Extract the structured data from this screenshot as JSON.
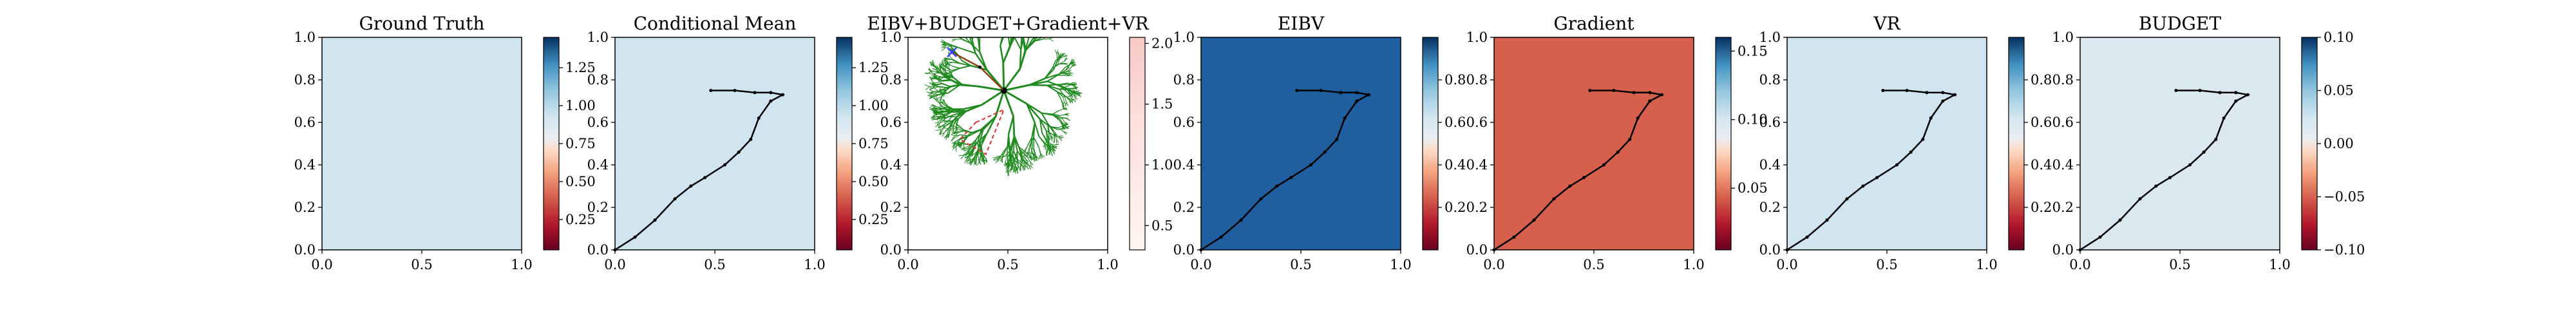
{
  "chart_data": [
    {
      "type": "heatmap",
      "title": "Ground Truth",
      "xlim": [
        0,
        1
      ],
      "ylim": [
        0,
        1
      ],
      "xticks": [
        "0.0",
        "0.5",
        "1.0"
      ],
      "yticks": [
        "0.0",
        "0.2",
        "0.4",
        "0.6",
        "0.8",
        "1.0"
      ],
      "colorbar_ticks": [
        "0.25",
        "0.50",
        "0.75",
        "1.00",
        "1.25"
      ],
      "colorbar_range": [
        0.05,
        1.45
      ],
      "colormap": "RdBu",
      "path": []
    },
    {
      "type": "heatmap",
      "title": "Conditional Mean",
      "xlim": [
        0,
        1
      ],
      "ylim": [
        0,
        1
      ],
      "xticks": [
        "0.0",
        "0.5",
        "1.0"
      ],
      "yticks": [
        "0.0",
        "0.2",
        "0.4",
        "0.6",
        "0.8",
        "1.0"
      ],
      "colorbar_ticks": [
        "0.25",
        "0.50",
        "0.75",
        "1.00",
        "1.25"
      ],
      "colorbar_range": [
        0.05,
        1.45
      ],
      "colormap": "RdBu",
      "path": [
        [
          0.0,
          0.0
        ],
        [
          0.1,
          0.06
        ],
        [
          0.2,
          0.14
        ],
        [
          0.3,
          0.24
        ],
        [
          0.38,
          0.3
        ],
        [
          0.45,
          0.34
        ],
        [
          0.55,
          0.4
        ],
        [
          0.62,
          0.46
        ],
        [
          0.68,
          0.52
        ],
        [
          0.72,
          0.62
        ],
        [
          0.78,
          0.7
        ],
        [
          0.84,
          0.73
        ],
        [
          0.78,
          0.74
        ],
        [
          0.7,
          0.74
        ],
        [
          0.6,
          0.75
        ],
        [
          0.48,
          0.75
        ]
      ]
    },
    {
      "type": "heatmap",
      "title": "EIBV+BUDGET+Gradient+VR",
      "xlim": [
        0,
        1
      ],
      "ylim": [
        0,
        1
      ],
      "xticks": [
        "0.0",
        "0.5",
        "1.0"
      ],
      "yticks": [
        "0.0",
        "0.2",
        "0.4",
        "0.6",
        "0.8",
        "1.0"
      ],
      "colorbar_ticks": [
        "0.5",
        "1.0",
        "1.5",
        "2.0"
      ],
      "colorbar_range": [
        0.3,
        2.05
      ],
      "colormap": "Reds",
      "tree_root": [
        0.48,
        0.75
      ],
      "budget_polygon": [
        [
          0.34,
          0.6
        ],
        [
          0.48,
          0.66
        ],
        [
          0.39,
          0.45
        ],
        [
          0.26,
          0.52
        ]
      ],
      "path": [
        [
          0.48,
          0.75
        ],
        [
          0.36,
          0.86
        ],
        [
          0.22,
          0.93
        ]
      ],
      "path_end_marker": [
        0.22,
        0.93
      ]
    },
    {
      "type": "heatmap",
      "title": "EIBV",
      "xlim": [
        0,
        1
      ],
      "ylim": [
        0,
        1
      ],
      "xticks": [
        "0.0",
        "0.5",
        "1.0"
      ],
      "yticks": [
        "0.0",
        "0.2",
        "0.4",
        "0.6",
        "0.8",
        "1.0"
      ],
      "colorbar_ticks": [
        "0.2",
        "0.4",
        "0.6",
        "0.8"
      ],
      "colorbar_range": [
        0.0,
        1.0
      ],
      "colormap": "RdBu",
      "path": [
        [
          0.0,
          0.0
        ],
        [
          0.1,
          0.06
        ],
        [
          0.2,
          0.14
        ],
        [
          0.3,
          0.24
        ],
        [
          0.38,
          0.3
        ],
        [
          0.45,
          0.34
        ],
        [
          0.55,
          0.4
        ],
        [
          0.62,
          0.46
        ],
        [
          0.68,
          0.52
        ],
        [
          0.72,
          0.62
        ],
        [
          0.78,
          0.7
        ],
        [
          0.84,
          0.73
        ],
        [
          0.78,
          0.74
        ],
        [
          0.7,
          0.74
        ],
        [
          0.6,
          0.75
        ],
        [
          0.48,
          0.75
        ]
      ]
    },
    {
      "type": "heatmap",
      "title": "Gradient",
      "xlim": [
        0,
        1
      ],
      "ylim": [
        0,
        1
      ],
      "xticks": [
        "0.0",
        "0.5",
        "1.0"
      ],
      "yticks": [
        "0.0",
        "0.2",
        "0.4",
        "0.6",
        "0.8",
        "1.0"
      ],
      "colorbar_ticks": [
        "0.05",
        "0.10",
        "0.15"
      ],
      "colorbar_range": [
        0.005,
        0.16
      ],
      "colormap": "RdBu",
      "path": [
        [
          0.0,
          0.0
        ],
        [
          0.1,
          0.06
        ],
        [
          0.2,
          0.14
        ],
        [
          0.3,
          0.24
        ],
        [
          0.38,
          0.3
        ],
        [
          0.45,
          0.34
        ],
        [
          0.55,
          0.4
        ],
        [
          0.62,
          0.46
        ],
        [
          0.68,
          0.52
        ],
        [
          0.72,
          0.62
        ],
        [
          0.78,
          0.7
        ],
        [
          0.84,
          0.73
        ],
        [
          0.78,
          0.74
        ],
        [
          0.7,
          0.74
        ],
        [
          0.6,
          0.75
        ],
        [
          0.48,
          0.75
        ]
      ]
    },
    {
      "type": "heatmap",
      "title": "VR",
      "xlim": [
        0,
        1
      ],
      "ylim": [
        0,
        1
      ],
      "xticks": [
        "0.0",
        "0.5",
        "1.0"
      ],
      "yticks": [
        "0.0",
        "0.2",
        "0.4",
        "0.6",
        "0.8",
        "1.0"
      ],
      "colorbar_ticks": [
        "0.2",
        "0.4",
        "0.6",
        "0.8"
      ],
      "colorbar_range": [
        0.0,
        1.0
      ],
      "colormap": "RdBu",
      "path": [
        [
          0.0,
          0.0
        ],
        [
          0.1,
          0.06
        ],
        [
          0.2,
          0.14
        ],
        [
          0.3,
          0.24
        ],
        [
          0.38,
          0.3
        ],
        [
          0.45,
          0.34
        ],
        [
          0.55,
          0.4
        ],
        [
          0.62,
          0.46
        ],
        [
          0.68,
          0.52
        ],
        [
          0.72,
          0.62
        ],
        [
          0.78,
          0.7
        ],
        [
          0.84,
          0.73
        ],
        [
          0.78,
          0.74
        ],
        [
          0.7,
          0.74
        ],
        [
          0.6,
          0.75
        ],
        [
          0.48,
          0.75
        ]
      ]
    },
    {
      "type": "heatmap",
      "title": "BUDGET",
      "xlim": [
        0,
        1
      ],
      "ylim": [
        0,
        1
      ],
      "xticks": [
        "0.0",
        "0.5",
        "1.0"
      ],
      "yticks": [
        "0.0",
        "0.2",
        "0.4",
        "0.6",
        "0.8",
        "1.0"
      ],
      "colorbar_ticks": [
        "−0.10",
        "−0.05",
        "0.00",
        "0.05",
        "0.10"
      ],
      "colorbar_range": [
        -0.1,
        0.1
      ],
      "colormap": "RdBu",
      "path": [
        [
          0.0,
          0.0
        ],
        [
          0.1,
          0.06
        ],
        [
          0.2,
          0.14
        ],
        [
          0.3,
          0.24
        ],
        [
          0.38,
          0.3
        ],
        [
          0.45,
          0.34
        ],
        [
          0.55,
          0.4
        ],
        [
          0.62,
          0.46
        ],
        [
          0.68,
          0.52
        ],
        [
          0.72,
          0.62
        ],
        [
          0.78,
          0.7
        ],
        [
          0.84,
          0.73
        ],
        [
          0.78,
          0.74
        ],
        [
          0.7,
          0.74
        ],
        [
          0.6,
          0.75
        ],
        [
          0.48,
          0.75
        ]
      ]
    }
  ],
  "colors": {
    "path": "#000000",
    "tree": "#1f8a1f",
    "budget_polygon": "#e03030",
    "path_end_marker": "#4040ff"
  }
}
